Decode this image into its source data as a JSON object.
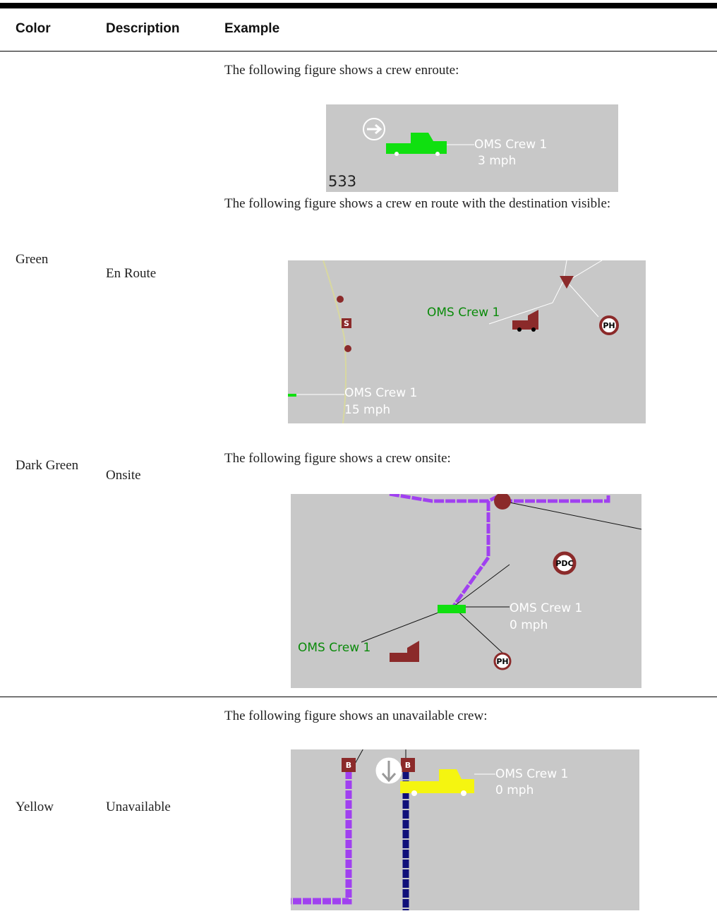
{
  "table": {
    "header": [
      "Color",
      "Description",
      "Example"
    ],
    "rows": [
      {
        "color": "Green",
        "description": "En Route",
        "examples": [
          {
            "caption": "The following figure shows a crew enroute:",
            "figure": {
              "labels": [
                "533",
                "OMS Crew 1",
                "3 mph"
              ]
            }
          },
          {
            "caption": "The following figure shows a crew en route with the destination visible:",
            "figure": {
              "labels": [
                "OMS Crew 1",
                "OMS Crew 1",
                "15 mph",
                "S",
                "PH"
              ]
            }
          }
        ]
      },
      {
        "color": "Dark Green",
        "description": "Onsite",
        "examples": [
          {
            "caption": "The following figure shows a crew onsite:",
            "figure": {
              "labels": [
                "PDC",
                "OMS Crew 1",
                "0 mph",
                "OMS Crew 1",
                "PH"
              ]
            }
          }
        ]
      },
      {
        "color": "Yellow",
        "description": "Unavailable",
        "examples": [
          {
            "caption": "The following figure shows an unavailable crew:",
            "figure": {
              "labels": [
                "B",
                "B",
                "OMS Crew 1",
                "0 mph"
              ]
            }
          }
        ]
      }
    ]
  }
}
